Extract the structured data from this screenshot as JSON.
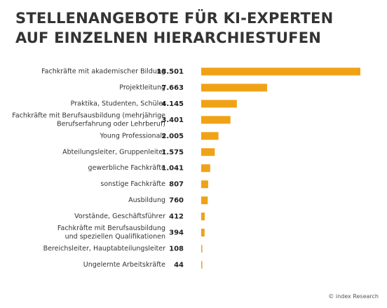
{
  "title_line1": "STELLENANGEBOTE FÜR KI-EXPERTEN",
  "title_line2": "AUF EINZELNEN HIERARCHIESTUFEN",
  "credit": "© index Research",
  "colors": {
    "bar": "#F0A217",
    "text": "#333333"
  },
  "chart_data": {
    "type": "bar",
    "orientation": "horizontal",
    "title": "STELLENANGEBOTE FÜR KI-EXPERTEN AUF EINZELNEN HIERARCHIESTUFEN",
    "categories": [
      [
        "Fachkräfte mit akademischer Bildung"
      ],
      [
        "Projektleitung"
      ],
      [
        "Praktika, Studenten, Schüler"
      ],
      [
        "Fachkräfte mit Berufsausbildung (mehrjährige",
        "Berufserfahrung oder Lehrberuf)"
      ],
      [
        "Young Professionals"
      ],
      [
        "Abteilungsleiter, Gruppenleiter"
      ],
      [
        "gewerbliche Fachkräfte"
      ],
      [
        "sonstige Fachkräfte"
      ],
      [
        "Ausbildung"
      ],
      [
        "Vorstände, Geschäftsführer"
      ],
      [
        "Fachkräfte mit Berufsausbildung",
        "und speziellen Qualifikationen"
      ],
      [
        "Bereichsleiter, Hauptabteilungsleiter"
      ],
      [
        "Ungelernte Arbeitskräfte"
      ]
    ],
    "values": [
      18501,
      7663,
      4145,
      3401,
      2005,
      1575,
      1041,
      807,
      760,
      412,
      394,
      108,
      44
    ],
    "value_labels": [
      "18.501",
      "7.663",
      "4.145",
      "3.401",
      "2.005",
      "1.575",
      "1.041",
      "807",
      "760",
      "412",
      "394",
      "108",
      "44"
    ],
    "xlim": [
      0,
      18501
    ],
    "grid": false,
    "legend": "none"
  }
}
